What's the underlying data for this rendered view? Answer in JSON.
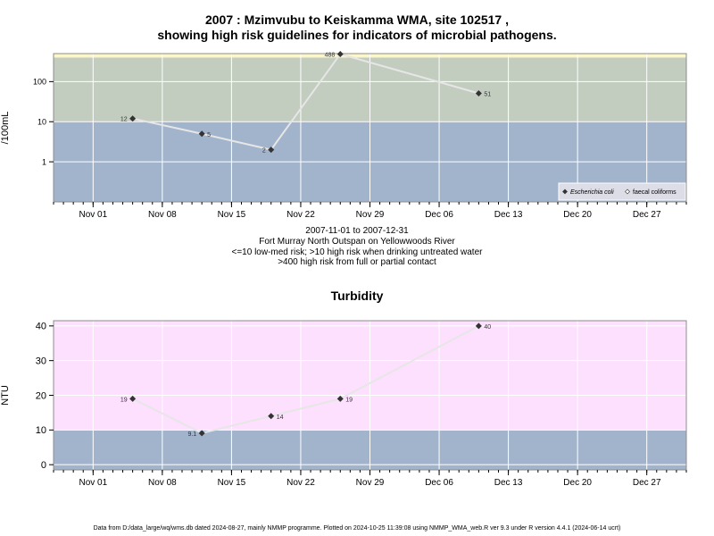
{
  "footer": "Data from D:/data_large/wq/wms.db dated 2024-08-27, mainly NMMP programme. Plotted on 2024-10-25 11:39:08 using NMMP_WMA_web.R ver 9.3 under R version 4.4.1 (2024-06-14 ucrt)",
  "chart_data": [
    {
      "type": "line",
      "title_line1": "2007 : Mzimvubu to Keiskamma WMA, site 102517 ,",
      "title_line2": "showing high risk guidelines for indicators of microbial pathogens.",
      "ylabel": "/100mL",
      "yscale": "log",
      "ylim": [
        0.1,
        500
      ],
      "yticks": [
        "1",
        "10",
        "100"
      ],
      "xlim": [
        "2007-10-28",
        "2007-12-31"
      ],
      "xticks": [
        "Nov 01",
        "Nov 08",
        "Nov 15",
        "Nov 22",
        "Nov 29",
        "Dec 06",
        "Dec 13",
        "Dec 20",
        "Dec 27"
      ],
      "grid": true,
      "bands": [
        {
          "from": 0.1,
          "to": 10,
          "color": "#a2b4cc"
        },
        {
          "from": 10,
          "to": 400,
          "color": "#c2cdbf"
        },
        {
          "from": 400,
          "to": 500,
          "color": "#fdf7c4"
        }
      ],
      "legend_position": "bottom-right",
      "legend": [
        {
          "label": "Escherichia coli",
          "marker": "filled-diamond"
        },
        {
          "label": "faecal coliforms",
          "marker": "open-diamond"
        }
      ],
      "series": [
        {
          "name": "Escherichia coli",
          "points": [
            {
              "x": "2007-11-05",
              "y": 12,
              "label": "12"
            },
            {
              "x": "2007-11-12",
              "y": 5,
              "label": "5"
            },
            {
              "x": "2007-11-19",
              "y": 2,
              "label": "2"
            },
            {
              "x": "2007-11-26",
              "y": 488,
              "label": "488"
            },
            {
              "x": "2007-12-10",
              "y": 51,
              "label": "51"
            }
          ]
        }
      ],
      "caption": [
        "2007-11-01 to 2007-12-31",
        "Fort Murray North Outspan on Yellowwoods River",
        "<=10 low-med risk; >10 high risk when drinking untreated water",
        ">400 high risk from full or partial contact"
      ]
    },
    {
      "type": "line",
      "title": "Turbidity",
      "ylabel": "NTU",
      "yscale": "linear",
      "ylim": [
        -1.5,
        41.5
      ],
      "yticks": [
        "0",
        "10",
        "20",
        "30",
        "40"
      ],
      "xlim": [
        "2007-10-28",
        "2007-12-31"
      ],
      "xticks": [
        "Nov 01",
        "Nov 08",
        "Nov 15",
        "Nov 22",
        "Nov 29",
        "Dec 06",
        "Dec 13",
        "Dec 20",
        "Dec 27"
      ],
      "grid": true,
      "bands": [
        {
          "from": -1.5,
          "to": 10,
          "color": "#a2b4cc"
        },
        {
          "from": 10,
          "to": 41.5,
          "color": "#fde0fd"
        }
      ],
      "series": [
        {
          "name": "",
          "points": [
            {
              "x": "2007-11-05",
              "y": 19,
              "label": "19"
            },
            {
              "x": "2007-11-12",
              "y": 9.1,
              "label": "9.1"
            },
            {
              "x": "2007-11-19",
              "y": 14,
              "label": "14"
            },
            {
              "x": "2007-11-26",
              "y": 19,
              "label": "19"
            },
            {
              "x": "2007-12-10",
              "y": 40,
              "label": "40"
            }
          ]
        }
      ]
    }
  ]
}
